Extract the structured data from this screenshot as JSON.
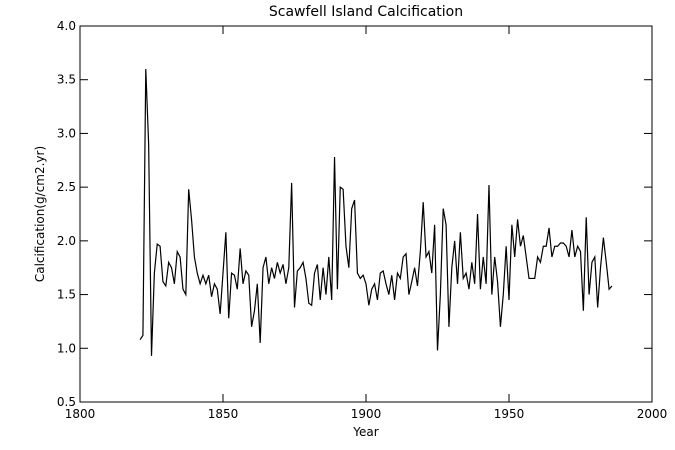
{
  "chart_data": {
    "type": "line",
    "title": "Scawfell Island Calcification",
    "xlabel": "Year",
    "ylabel": "Calcification(g/cm2.yr)",
    "color": "#000000",
    "x": [
      1821,
      1822,
      1823,
      1824,
      1825,
      1826,
      1827,
      1828,
      1829,
      1830,
      1831,
      1832,
      1833,
      1834,
      1835,
      1836,
      1837,
      1838,
      1839,
      1840,
      1841,
      1842,
      1843,
      1844,
      1845,
      1846,
      1847,
      1848,
      1849,
      1850,
      1851,
      1852,
      1853,
      1854,
      1855,
      1856,
      1857,
      1858,
      1859,
      1860,
      1861,
      1862,
      1863,
      1864,
      1865,
      1866,
      1867,
      1868,
      1869,
      1870,
      1871,
      1872,
      1873,
      1874,
      1875,
      1876,
      1877,
      1878,
      1879,
      1880,
      1881,
      1882,
      1883,
      1884,
      1885,
      1886,
      1887,
      1888,
      1889,
      1890,
      1891,
      1892,
      1893,
      1894,
      1895,
      1896,
      1897,
      1898,
      1899,
      1900,
      1901,
      1902,
      1903,
      1904,
      1905,
      1906,
      1907,
      1908,
      1909,
      1910,
      1911,
      1912,
      1913,
      1914,
      1915,
      1916,
      1917,
      1918,
      1919,
      1920,
      1921,
      1922,
      1923,
      1924,
      1925,
      1926,
      1927,
      1928,
      1929,
      1930,
      1931,
      1932,
      1933,
      1934,
      1935,
      1936,
      1937,
      1938,
      1939,
      1940,
      1941,
      1942,
      1943,
      1944,
      1945,
      1946,
      1947,
      1948,
      1949,
      1950,
      1951,
      1952,
      1953,
      1954,
      1955,
      1956,
      1957,
      1958,
      1959,
      1960,
      1961,
      1962,
      1963,
      1964,
      1965,
      1966,
      1967,
      1968,
      1969,
      1970,
      1971,
      1972,
      1973,
      1974,
      1975,
      1976,
      1977,
      1978,
      1979,
      1980,
      1981,
      1982,
      1983,
      1984,
      1985,
      1986
    ],
    "values": [
      1.08,
      1.12,
      3.6,
      2.9,
      0.93,
      1.7,
      1.97,
      1.95,
      1.62,
      1.58,
      1.8,
      1.75,
      1.6,
      1.9,
      1.85,
      1.55,
      1.5,
      2.48,
      2.2,
      1.85,
      1.7,
      1.6,
      1.68,
      1.6,
      1.68,
      1.48,
      1.6,
      1.55,
      1.32,
      1.7,
      2.08,
      1.28,
      1.7,
      1.68,
      1.55,
      1.93,
      1.6,
      1.72,
      1.68,
      1.2,
      1.35,
      1.6,
      1.05,
      1.75,
      1.85,
      1.6,
      1.75,
      1.65,
      1.8,
      1.7,
      1.78,
      1.6,
      1.75,
      2.54,
      1.38,
      1.72,
      1.75,
      1.8,
      1.65,
      1.42,
      1.4,
      1.7,
      1.78,
      1.45,
      1.75,
      1.5,
      1.85,
      1.45,
      2.78,
      1.55,
      2.5,
      2.48,
      1.95,
      1.75,
      2.3,
      2.38,
      1.7,
      1.65,
      1.68,
      1.6,
      1.4,
      1.55,
      1.6,
      1.45,
      1.7,
      1.72,
      1.6,
      1.5,
      1.68,
      1.45,
      1.7,
      1.65,
      1.85,
      1.88,
      1.5,
      1.62,
      1.75,
      1.58,
      1.9,
      2.36,
      1.85,
      1.9,
      1.7,
      2.15,
      0.98,
      1.5,
      2.3,
      2.15,
      1.2,
      1.75,
      2.0,
      1.6,
      2.08,
      1.65,
      1.7,
      1.55,
      1.8,
      1.6,
      2.25,
      1.55,
      1.85,
      1.6,
      2.52,
      1.5,
      1.85,
      1.62,
      1.2,
      1.5,
      1.95,
      1.45,
      2.15,
      1.85,
      2.2,
      1.95,
      2.05,
      1.85,
      1.65,
      1.65,
      1.65,
      1.85,
      1.8,
      1.95,
      1.95,
      2.12,
      1.85,
      1.95,
      1.95,
      1.98,
      1.98,
      1.95,
      1.85,
      2.1,
      1.85,
      1.95,
      1.9,
      1.35,
      2.22,
      1.5,
      1.8,
      1.85,
      1.38,
      1.75,
      2.03,
      1.8,
      1.55,
      1.58
    ],
    "xlim": [
      1800,
      2000
    ],
    "xticks": [
      1800,
      1850,
      1900,
      1950,
      2000
    ],
    "ylim": [
      0.5,
      4.0
    ],
    "yticks": [
      0.5,
      {
        "value": 1,
        "label": "1.0"
      },
      1.5,
      {
        "value": 2,
        "label": "2.0"
      },
      2.5,
      {
        "value": 3,
        "label": "3.0"
      },
      3.5,
      {
        "value": 4,
        "label": "4.0"
      }
    ]
  }
}
